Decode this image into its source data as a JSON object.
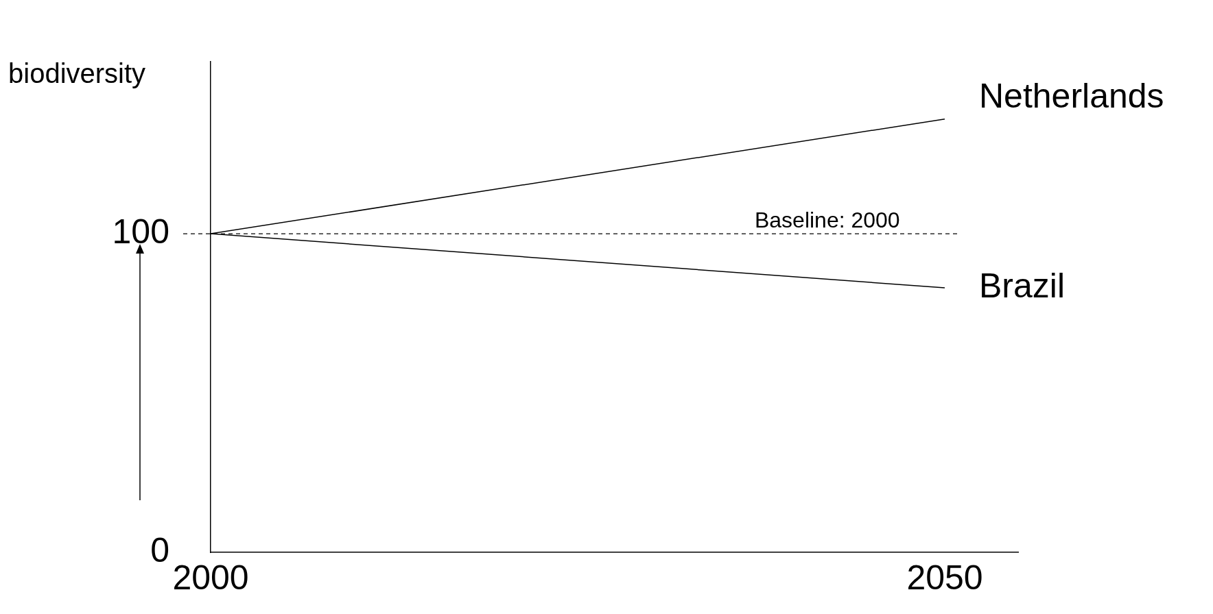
{
  "chart_data": {
    "type": "line",
    "ylabel": "biodiversity",
    "x": [
      2000,
      2050
    ],
    "series": [
      {
        "name": "Netherlands",
        "color": "#000000",
        "values": [
          100,
          136
        ]
      },
      {
        "name": "Brazil",
        "color": "#000000",
        "values": [
          100,
          83
        ]
      }
    ],
    "xlim": [
      2000,
      2055
    ],
    "xticks": [
      2000,
      2050
    ],
    "ylim": [
      0,
      154
    ],
    "yticks": [
      0,
      100
    ],
    "ref_lines": [
      {
        "axis": "y",
        "value": 100,
        "line_style": "dashed",
        "color": "#000000"
      }
    ],
    "annotations": [
      {
        "text": "Baseline: 2000",
        "x": 2042,
        "y": 100
      }
    ],
    "grid": false,
    "legend": false,
    "marker": "none",
    "line_style": "solid"
  }
}
